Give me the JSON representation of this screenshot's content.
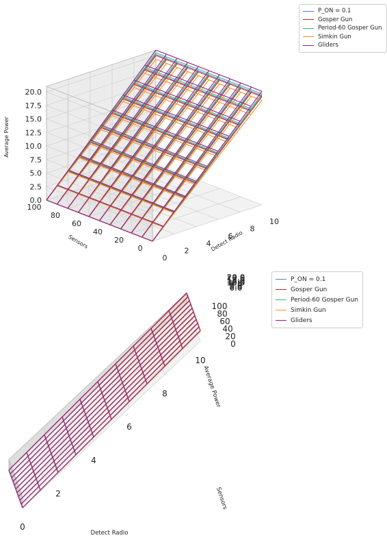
{
  "chart_data": [
    {
      "type": "surface-3d-wireframe",
      "view": "elevated oblique",
      "xlabel": "Detect Radio",
      "ylabel": "Sensors",
      "zlabel": "Average Power",
      "x_ticks": [
        "0",
        "2",
        "4",
        "6",
        "8",
        "10"
      ],
      "y_ticks": [
        "100",
        "80",
        "60",
        "40",
        "20",
        "0"
      ],
      "z_ticks": [
        "0.0",
        "2.5",
        "5.0",
        "7.5",
        "10.0",
        "12.5",
        "15.0",
        "17.5",
        "20.0"
      ],
      "xlim": [
        0,
        10
      ],
      "ylim": [
        0,
        100
      ],
      "zlim": [
        0,
        21
      ],
      "grid": true,
      "legend_position": "top-right outside",
      "series": [
        {
          "name": "P_ON = 0.1",
          "color": "#4f7fd9",
          "z_at_max_radius": 20.2
        },
        {
          "name": "Gosper Gun",
          "color": "#cc2a2a",
          "z_at_max_radius": 20.0
        },
        {
          "name": "Period-60 Gosper Gun",
          "color": "#3cb371",
          "z_at_max_radius": 20.5
        },
        {
          "name": "Simkin Gun",
          "color": "#ff8c1a",
          "z_at_max_radius": 19.3
        },
        {
          "name": "Gliders",
          "color": "#8b1a8b",
          "z_at_max_radius": 21.0
        }
      ]
    },
    {
      "type": "surface-3d-wireframe",
      "view": "low front",
      "xlabel": "Detect Radio",
      "ylabel": "Sensors",
      "zlabel": "Average Power",
      "x_ticks": [
        "0",
        "2",
        "4",
        "6",
        "8",
        "10"
      ],
      "y_ticks": [
        "100",
        "80",
        "60",
        "40",
        "20",
        "0"
      ],
      "z_ticks": [
        "0.0",
        "2.5",
        "5.0",
        "7.5",
        "10.0",
        "12.5",
        "15.0",
        "17.5",
        "20.0"
      ],
      "xlim": [
        0,
        10
      ],
      "ylim": [
        0,
        100
      ],
      "zlim": [
        0,
        21
      ],
      "grid": true,
      "legend_position": "top-right outside",
      "series": [
        {
          "name": "P_ON = 0.1",
          "color": "#4f7fd9",
          "z_at_max_radius": 20.2
        },
        {
          "name": "Gosper Gun",
          "color": "#cc2a2a",
          "z_at_max_radius": 20.0
        },
        {
          "name": "Period-60 Gosper Gun",
          "color": "#3cb371",
          "z_at_max_radius": 20.5
        },
        {
          "name": "Simkin Gun",
          "color": "#ff8c1a",
          "z_at_max_radius": 19.3
        },
        {
          "name": "Gliders",
          "color": "#8b1a8b",
          "z_at_max_radius": 21.0
        }
      ]
    }
  ]
}
